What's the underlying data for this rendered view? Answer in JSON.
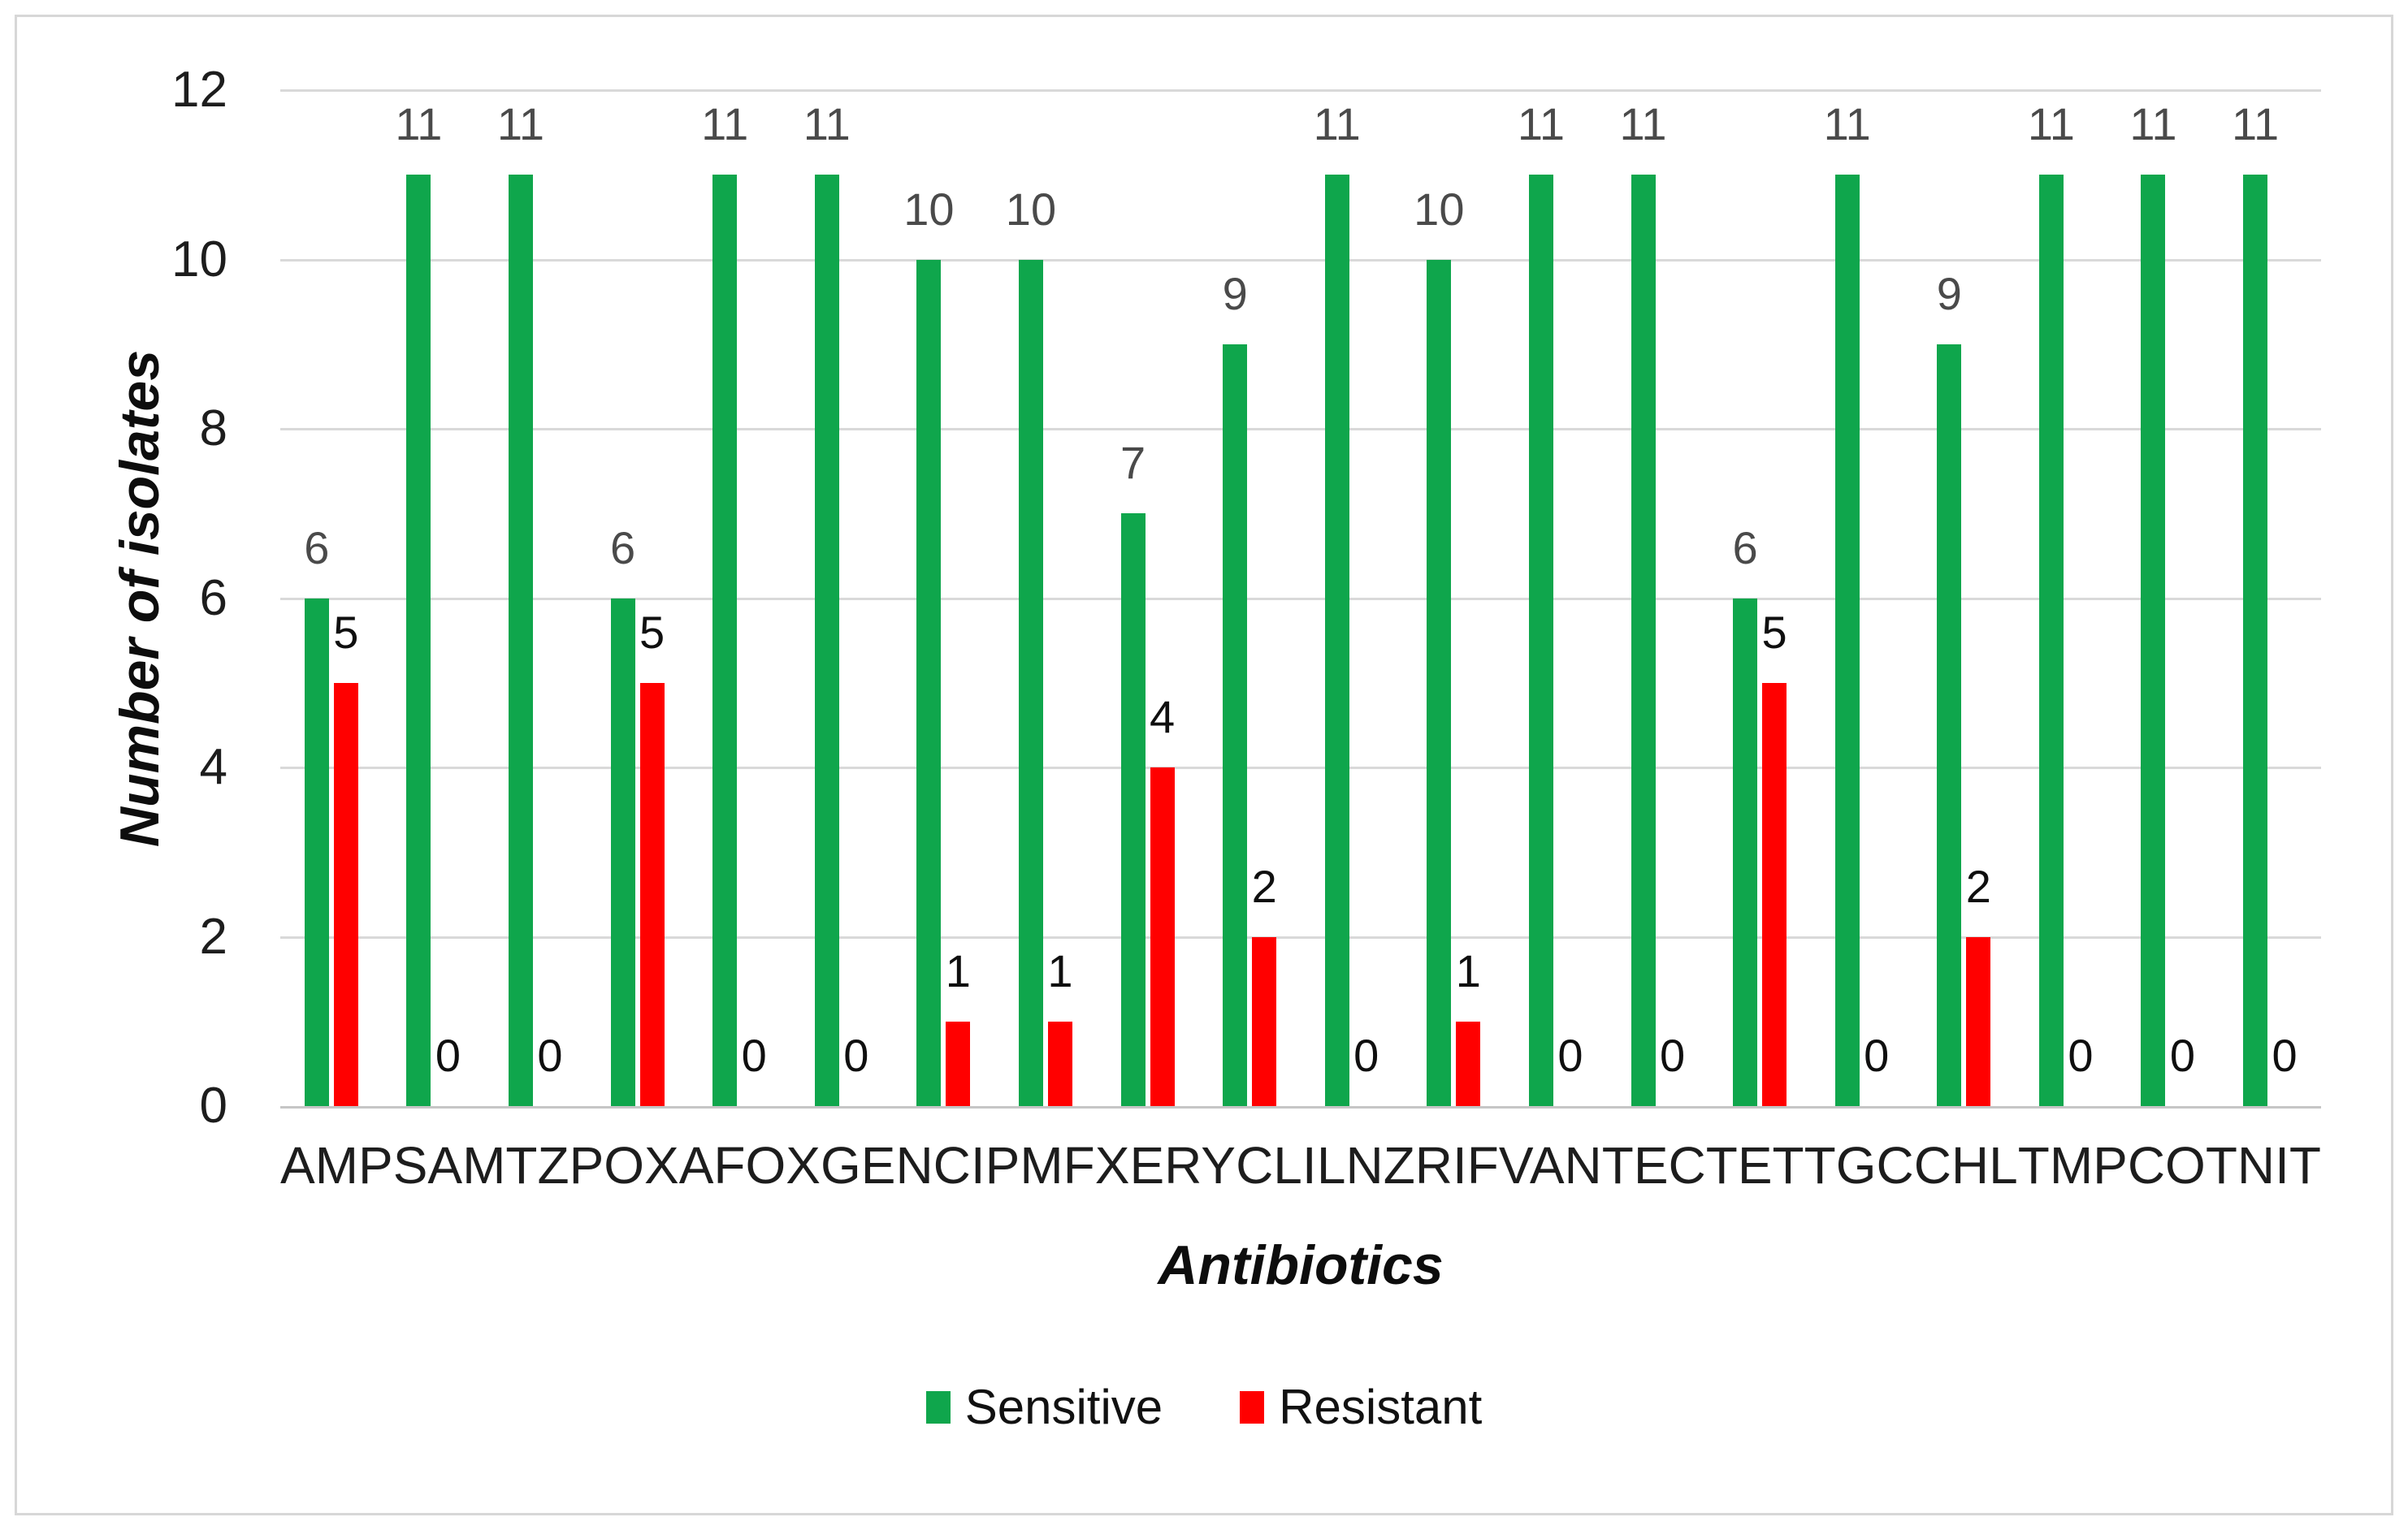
{
  "figure": {
    "background": "#ffffff",
    "border_color": "#d7d7d7"
  },
  "axis_style": {
    "tick_color": "#1d1d1d",
    "gridline_color": "#d9d9d9",
    "baseline_color": "#c6c6c6"
  },
  "chart_data": {
    "type": "bar",
    "title": "",
    "xlabel": "Antibiotics",
    "ylabel": "Number of isolates",
    "ylim": [
      0,
      12
    ],
    "yticks": [
      0,
      2,
      4,
      6,
      8,
      10,
      12
    ],
    "grid": true,
    "legend_position": "bottom-center",
    "data_labels": "outside-end",
    "categories": [
      "AMP",
      "SAM",
      "TZP",
      "OXA",
      "FOX",
      "GEN",
      "CIP",
      "MFX",
      "ERY",
      "CLI",
      "LNZ",
      "RIF",
      "VAN",
      "TEC",
      "TET",
      "TGC",
      "CHL",
      "TMP",
      "COT",
      "NIT"
    ],
    "series": [
      {
        "name": "Sensitive",
        "color": "#0fa64c",
        "label_color": "#4a4a4a",
        "values": [
          6,
          11,
          11,
          6,
          11,
          11,
          10,
          10,
          7,
          9,
          11,
          10,
          11,
          11,
          6,
          11,
          9,
          11,
          11,
          11
        ]
      },
      {
        "name": "Resistant",
        "color": "#ff0000",
        "label_color": "#0f0f0f",
        "values": [
          5,
          0,
          0,
          5,
          0,
          0,
          1,
          1,
          4,
          2,
          0,
          1,
          0,
          0,
          5,
          0,
          2,
          0,
          0,
          0
        ]
      }
    ]
  }
}
